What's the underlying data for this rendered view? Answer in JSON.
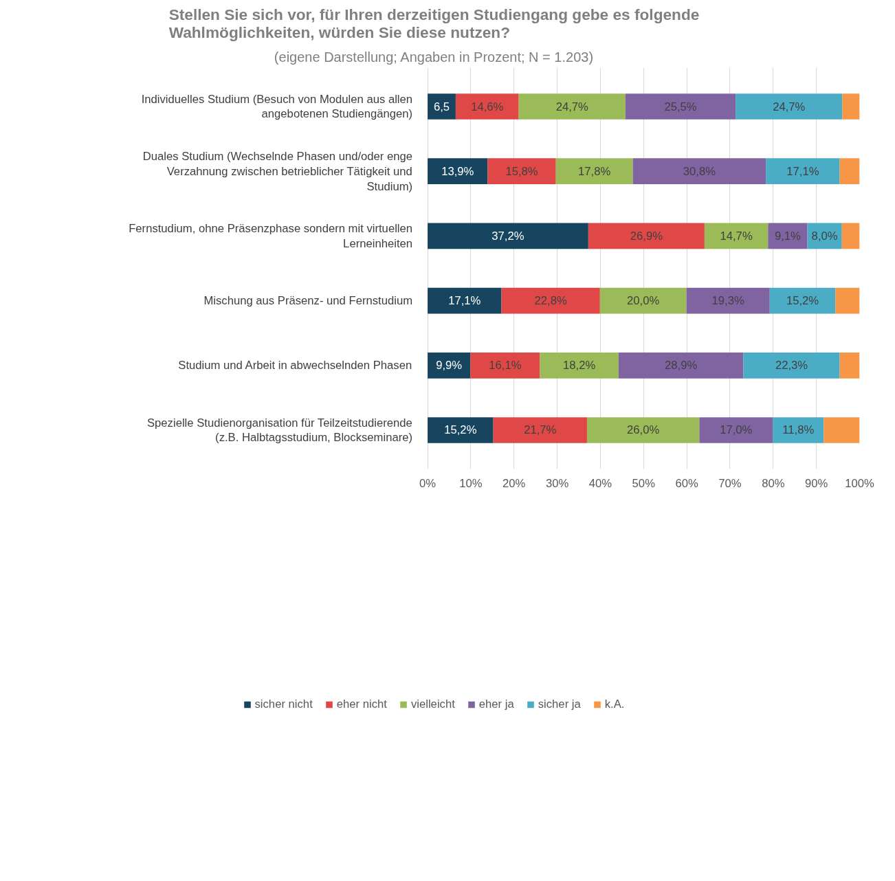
{
  "chart_data": {
    "type": "bar",
    "orientation": "horizontal",
    "stacked": true,
    "title": "Stellen Sie sich vor, für Ihren derzeitigen Studiengang gebe es folgende Wahlmöglichkeiten, würden Sie diese nutzen?",
    "subtitle": "(eigene Darstellung; Angaben in Prozent; N = 1.203)",
    "categories": [
      "Individuelles Studium (Besuch von Modulen aus allen angebotenen Studiengängen)",
      "Duales Studium (Wechselnde Phasen und/oder enge Verzahnung zwischen betrieblicher Tätigkeit und Studium)",
      "Fernstudium, ohne Präsenzphase sondern mit virtuellen Lerneinheiten",
      "Mischung aus Präsenz- und Fernstudium",
      "Studium und Arbeit in abwechselnden Phasen",
      "Spezielle Studienorganisation für Teilzeitstudierende (z.B. Halbtagsstudium, Blockseminare)"
    ],
    "series": [
      {
        "name": "sicher nicht",
        "color": "#17455f",
        "values": [
          6.5,
          13.9,
          37.2,
          17.1,
          9.9,
          15.2
        ],
        "value_labels": [
          "6,5",
          "13,9%",
          "37,2%",
          "17,1%",
          "9,9%",
          "15,2%"
        ]
      },
      {
        "name": "eher nicht",
        "color": "#e04848",
        "values": [
          14.6,
          15.8,
          26.9,
          22.8,
          16.1,
          21.7
        ],
        "value_labels": [
          "14,6%",
          "15,8%",
          "26,9%",
          "22,8%",
          "16,1%",
          "21,7%"
        ]
      },
      {
        "name": "vielleicht",
        "color": "#9bbb59",
        "values": [
          24.7,
          17.8,
          14.7,
          20.0,
          18.2,
          26.0
        ],
        "value_labels": [
          "24,7%",
          "17,8%",
          "14,7%",
          "20,0%",
          "18,2%",
          "26,0%"
        ]
      },
      {
        "name": "eher ja",
        "color": "#8064a2",
        "values": [
          25.5,
          30.8,
          9.1,
          19.3,
          28.9,
          17.0
        ],
        "value_labels": [
          "25,5%",
          "30,8%",
          "9,1%",
          "19,3%",
          "28,9%",
          "17,0%"
        ]
      },
      {
        "name": "sicher ja",
        "color": "#4bacc6",
        "values": [
          24.7,
          17.1,
          8.0,
          15.2,
          22.3,
          11.8
        ],
        "value_labels": [
          "24,7%",
          "17,1%",
          "8,0%",
          "15,2%",
          "22,3%",
          "11,8%"
        ]
      },
      {
        "name": "k.A.",
        "color": "#f79646",
        "values": [
          4.0,
          4.6,
          4.1,
          5.6,
          4.6,
          8.3
        ]
      }
    ],
    "xlim": [
      0,
      100
    ],
    "xticks": [
      {
        "value": 0,
        "label": "0%"
      },
      {
        "value": 10,
        "label": "10%"
      },
      {
        "value": 20,
        "label": "20%"
      },
      {
        "value": 30,
        "label": "30%"
      },
      {
        "value": 40,
        "label": "40%"
      },
      {
        "value": 50,
        "label": "50%"
      },
      {
        "value": 60,
        "label": "60%"
      },
      {
        "value": 70,
        "label": "70%"
      },
      {
        "value": 80,
        "label": "80%"
      },
      {
        "value": 90,
        "label": "90%"
      },
      {
        "value": 100,
        "label": "100%"
      }
    ],
    "grid": "x",
    "legend": "bottom"
  }
}
